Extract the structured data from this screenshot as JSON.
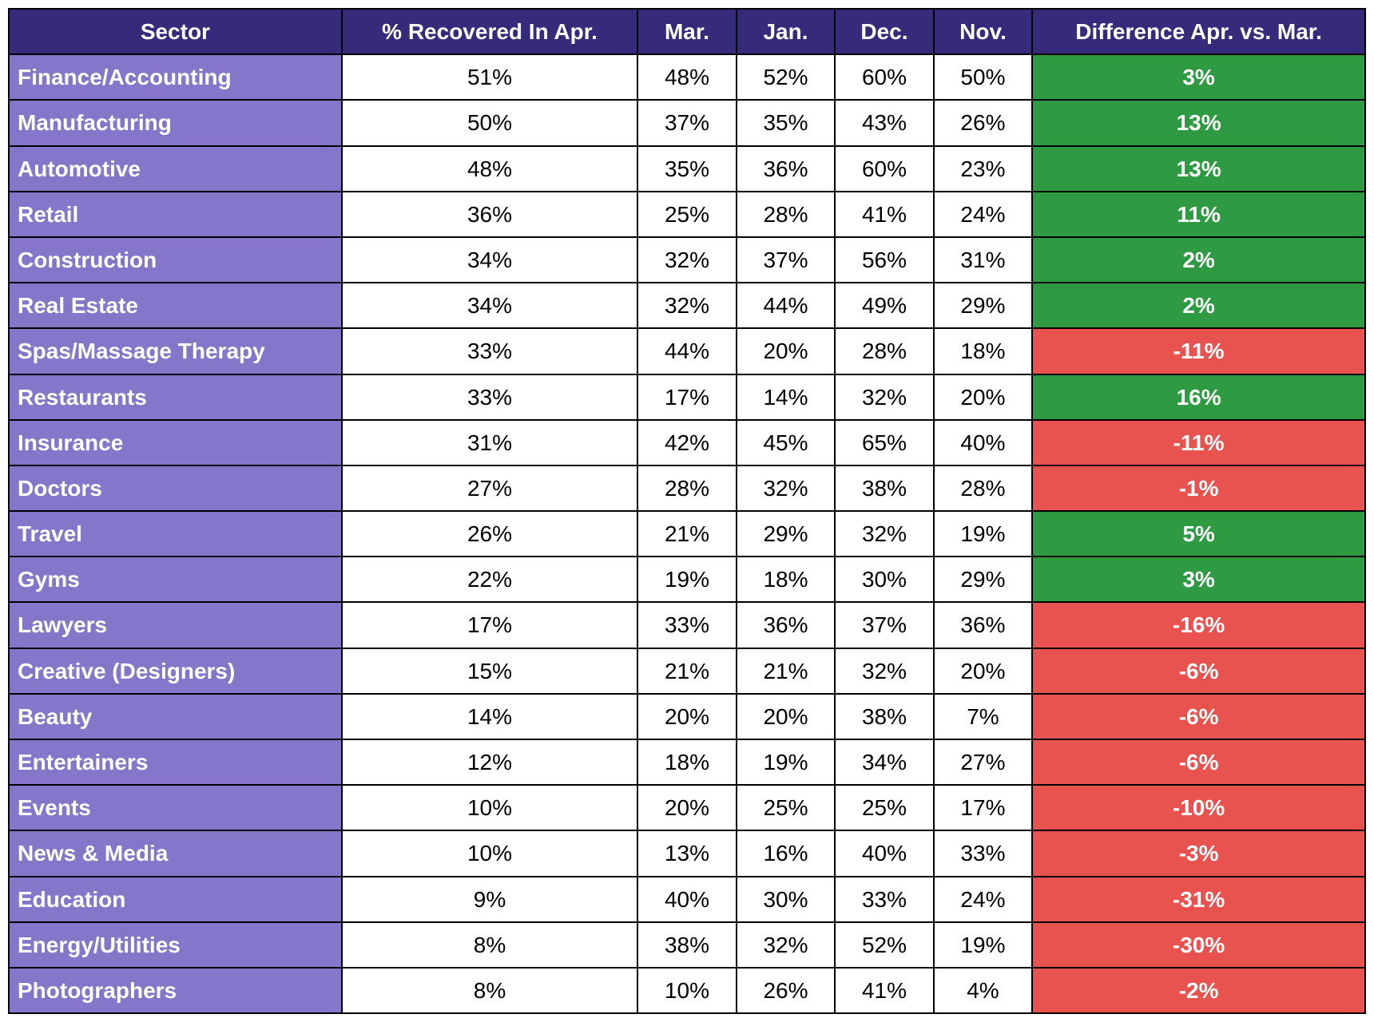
{
  "table": {
    "type": "table",
    "colors": {
      "header_bg": "#362a7a",
      "header_text": "#ffffff",
      "sector_bg": "#8576c9",
      "sector_text": "#ffffff",
      "data_bg": "#ffffff",
      "data_text": "#000000",
      "border": "#000000",
      "positive_bg": "#2e9b43",
      "negative_bg": "#e8524f",
      "diff_text": "#ffffff"
    },
    "font": {
      "family": "Arial",
      "header_size_pt": 22,
      "cell_size_pt": 22,
      "weight_header": "bold"
    },
    "col_widths_pct": [
      27,
      24,
      8,
      8,
      8,
      8,
      27
    ],
    "columns": [
      "Sector",
      "% Recovered In Apr.",
      "Mar.",
      "Jan.",
      "Dec.",
      "Nov.",
      "Difference Apr. vs. Mar."
    ],
    "rows": [
      {
        "sector": "Finance/Accounting",
        "apr": "51%",
        "mar": "48%",
        "jan": "52%",
        "dec": "60%",
        "nov": "50%",
        "diff": "3%",
        "diff_sign": "pos"
      },
      {
        "sector": "Manufacturing",
        "apr": "50%",
        "mar": "37%",
        "jan": "35%",
        "dec": "43%",
        "nov": "26%",
        "diff": "13%",
        "diff_sign": "pos"
      },
      {
        "sector": "Automotive",
        "apr": "48%",
        "mar": "35%",
        "jan": "36%",
        "dec": "60%",
        "nov": "23%",
        "diff": "13%",
        "diff_sign": "pos"
      },
      {
        "sector": "Retail",
        "apr": "36%",
        "mar": "25%",
        "jan": "28%",
        "dec": "41%",
        "nov": "24%",
        "diff": "11%",
        "diff_sign": "pos"
      },
      {
        "sector": "Construction",
        "apr": "34%",
        "mar": "32%",
        "jan": "37%",
        "dec": "56%",
        "nov": "31%",
        "diff": "2%",
        "diff_sign": "pos"
      },
      {
        "sector": "Real Estate",
        "apr": "34%",
        "mar": "32%",
        "jan": "44%",
        "dec": "49%",
        "nov": "29%",
        "diff": "2%",
        "diff_sign": "pos"
      },
      {
        "sector": "Spas/Massage Therapy",
        "apr": "33%",
        "mar": "44%",
        "jan": "20%",
        "dec": "28%",
        "nov": "18%",
        "diff": "-11%",
        "diff_sign": "neg"
      },
      {
        "sector": "Restaurants",
        "apr": "33%",
        "mar": "17%",
        "jan": "14%",
        "dec": "32%",
        "nov": "20%",
        "diff": "16%",
        "diff_sign": "pos"
      },
      {
        "sector": "Insurance",
        "apr": "31%",
        "mar": "42%",
        "jan": "45%",
        "dec": "65%",
        "nov": "40%",
        "diff": "-11%",
        "diff_sign": "neg"
      },
      {
        "sector": "Doctors",
        "apr": "27%",
        "mar": "28%",
        "jan": "32%",
        "dec": "38%",
        "nov": "28%",
        "diff": "-1%",
        "diff_sign": "neg"
      },
      {
        "sector": "Travel",
        "apr": "26%",
        "mar": "21%",
        "jan": "29%",
        "dec": "32%",
        "nov": "19%",
        "diff": "5%",
        "diff_sign": "pos"
      },
      {
        "sector": "Gyms",
        "apr": "22%",
        "mar": "19%",
        "jan": "18%",
        "dec": "30%",
        "nov": "29%",
        "diff": "3%",
        "diff_sign": "pos"
      },
      {
        "sector": "Lawyers",
        "apr": "17%",
        "mar": "33%",
        "jan": "36%",
        "dec": "37%",
        "nov": "36%",
        "diff": "-16%",
        "diff_sign": "neg"
      },
      {
        "sector": "Creative (Designers)",
        "apr": "15%",
        "mar": "21%",
        "jan": "21%",
        "dec": "32%",
        "nov": "20%",
        "diff": "-6%",
        "diff_sign": "neg"
      },
      {
        "sector": "Beauty",
        "apr": "14%",
        "mar": "20%",
        "jan": "20%",
        "dec": "38%",
        "nov": "7%",
        "diff": "-6%",
        "diff_sign": "neg"
      },
      {
        "sector": "Entertainers",
        "apr": "12%",
        "mar": "18%",
        "jan": "19%",
        "dec": "34%",
        "nov": "27%",
        "diff": "-6%",
        "diff_sign": "neg"
      },
      {
        "sector": "Events",
        "apr": "10%",
        "mar": "20%",
        "jan": "25%",
        "dec": "25%",
        "nov": "17%",
        "diff": "-10%",
        "diff_sign": "neg"
      },
      {
        "sector": "News & Media",
        "apr": "10%",
        "mar": "13%",
        "jan": "16%",
        "dec": "40%",
        "nov": "33%",
        "diff": "-3%",
        "diff_sign": "neg"
      },
      {
        "sector": "Education",
        "apr": "9%",
        "mar": "40%",
        "jan": "30%",
        "dec": "33%",
        "nov": "24%",
        "diff": "-31%",
        "diff_sign": "neg"
      },
      {
        "sector": "Energy/Utilities",
        "apr": "8%",
        "mar": "38%",
        "jan": "32%",
        "dec": "52%",
        "nov": "19%",
        "diff": "-30%",
        "diff_sign": "neg"
      },
      {
        "sector": "Photographers",
        "apr": "8%",
        "mar": "10%",
        "jan": "26%",
        "dec": "41%",
        "nov": "4%",
        "diff": "-2%",
        "diff_sign": "neg"
      }
    ]
  }
}
